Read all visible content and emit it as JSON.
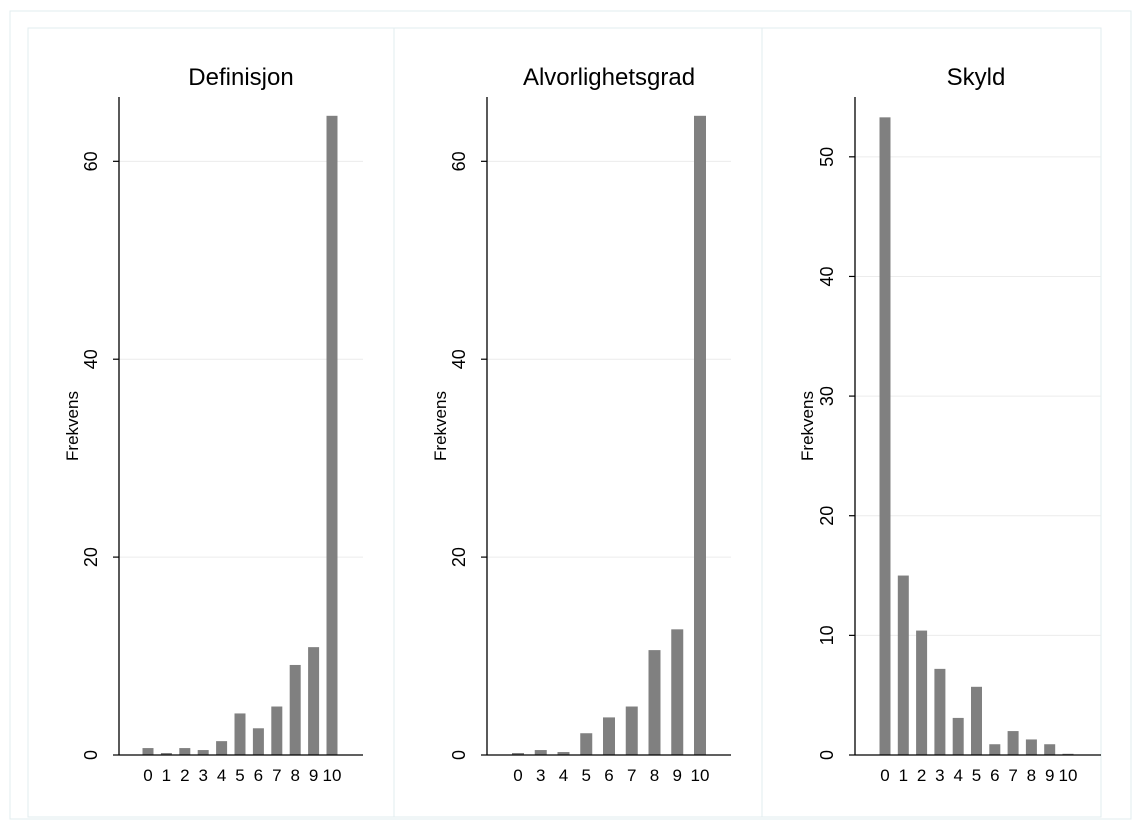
{
  "chart_data": [
    {
      "type": "bar",
      "title": "Definisjon",
      "xlabel": "",
      "ylabel": "Frekvens",
      "ylim": [
        0,
        66.5
      ],
      "yticks": [
        0,
        20,
        40,
        60
      ],
      "grid": true,
      "categories": [
        "0",
        "1",
        "2",
        "3",
        "4",
        "5",
        "6",
        "7",
        "8",
        "9",
        "10"
      ],
      "values": [
        0.7,
        0.2,
        0.7,
        0.5,
        1.4,
        4.2,
        2.7,
        4.9,
        9.1,
        10.9,
        64.6
      ]
    },
    {
      "type": "bar",
      "title": "Alvorlighetsgrad",
      "xlabel": "",
      "ylabel": "Frekvens",
      "ylim": [
        0,
        66.5
      ],
      "yticks": [
        0,
        20,
        40,
        60
      ],
      "grid": true,
      "categories": [
        "0",
        "3",
        "4",
        "5",
        "6",
        "7",
        "8",
        "9",
        "10"
      ],
      "values": [
        0.2,
        0.5,
        0.3,
        2.2,
        3.8,
        4.9,
        10.6,
        12.7,
        64.6
      ]
    },
    {
      "type": "bar",
      "title": "Skyld",
      "xlabel": "",
      "ylabel": "Frekvens",
      "ylim": [
        0,
        55
      ],
      "yticks": [
        0,
        10,
        20,
        30,
        40,
        50
      ],
      "grid": true,
      "categories": [
        "0",
        "1",
        "2",
        "3",
        "4",
        "5",
        "6",
        "7",
        "8",
        "9",
        "10"
      ],
      "values": [
        53.3,
        15.0,
        10.4,
        7.2,
        3.1,
        5.7,
        0.9,
        2.0,
        1.3,
        0.9,
        0.1
      ]
    }
  ],
  "colors": {
    "bar": "#808080",
    "grid": "#ececec",
    "axis": "#000000",
    "panel_border": "#e2ecef"
  }
}
